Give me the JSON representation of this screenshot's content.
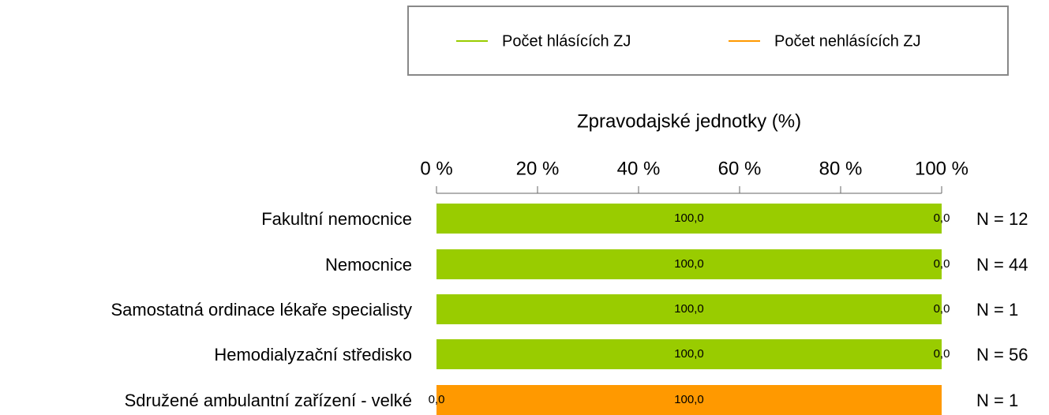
{
  "chart_data": {
    "type": "stacked-bar-horizontal",
    "x_label": "Zpravodajské jednotky (%)",
    "categories": [
      "Fakultní nemocnice",
      "Nemocnice",
      "Samostatná ordinace lékaře specialisty",
      "Hemodialyzační středisko",
      "Sdružené ambulantní zařízení - velké"
    ],
    "series": [
      {
        "name": "Počet hlásících ZJ",
        "color": "#99cc00",
        "values": [
          100,
          100,
          100,
          100,
          0
        ],
        "value_labels": [
          "100,0",
          "100,0",
          "100,0",
          "100,0",
          "0,0"
        ]
      },
      {
        "name": "Počet nehlásících ZJ",
        "color": "#ff9900",
        "values": [
          0,
          0,
          0,
          0,
          100
        ],
        "value_labels": [
          "0,0",
          "0,0",
          "0,0",
          "0,0",
          "100,0"
        ]
      }
    ],
    "annotations": [
      "N = 12",
      "N = 44",
      "N = 1",
      "N = 56",
      "N = 1"
    ],
    "xlim": [
      0,
      100
    ],
    "xticks": [
      {
        "value": 0,
        "label": "0 %"
      },
      {
        "value": 20,
        "label": "20 %"
      },
      {
        "value": 40,
        "label": "40 %"
      },
      {
        "value": 60,
        "label": "60 %"
      },
      {
        "value": 80,
        "label": "80 %"
      },
      {
        "value": 100,
        "label": "100 %"
      }
    ],
    "legend": "top"
  }
}
